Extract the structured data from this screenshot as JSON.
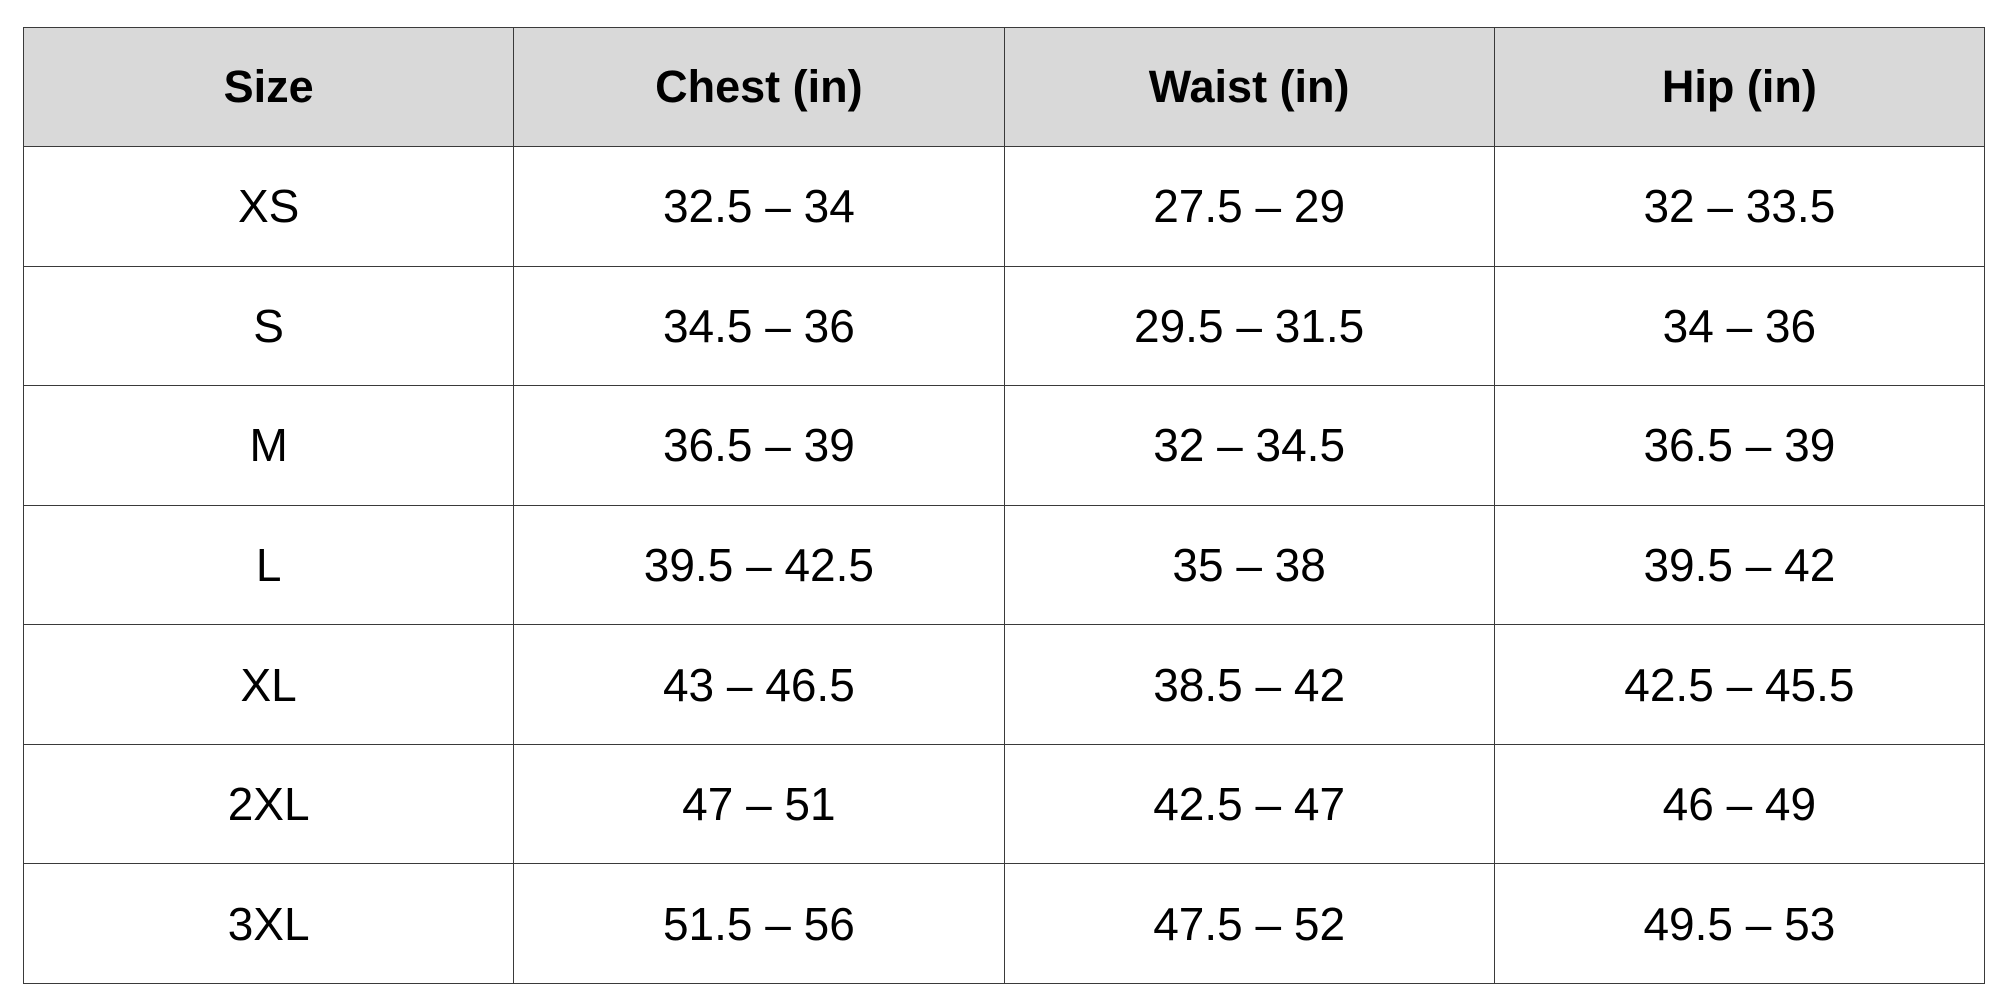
{
  "table": {
    "headers": [
      "Size",
      "Chest (in)",
      "Waist (in)",
      "Hip (in)"
    ],
    "rows": [
      [
        "XS",
        "32.5 – 34",
        "27.5 – 29",
        "32 – 33.5"
      ],
      [
        "S",
        "34.5 – 36",
        "29.5 – 31.5",
        "34 – 36"
      ],
      [
        "M",
        "36.5 – 39",
        "32 – 34.5",
        "36.5 – 39"
      ],
      [
        "L",
        "39.5 – 42.5",
        "35 – 38",
        "39.5 – 42"
      ],
      [
        "XL",
        "43 – 46.5",
        "38.5 – 42",
        "42.5 – 45.5"
      ],
      [
        "2XL",
        "47 – 51",
        "42.5 – 47",
        "46 – 49"
      ],
      [
        "3XL",
        "51.5 – 56",
        "47.5 – 52",
        "49.5 – 53"
      ]
    ]
  },
  "colors": {
    "header_background": "#d9d9d9",
    "cell_background": "#ffffff",
    "border": "#3a3a3a",
    "text": "#000000"
  }
}
